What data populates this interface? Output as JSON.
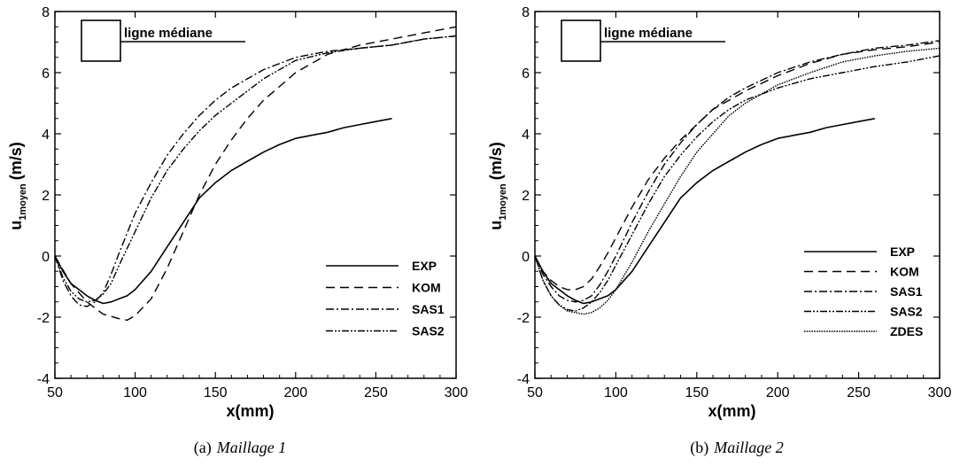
{
  "chart_data": [
    {
      "type": "line",
      "caption_prefix": "(a)",
      "caption": "Maillage 1",
      "inset_label": "ligne médiane",
      "xlabel": "x(mm)",
      "ylabel_main": "u",
      "ylabel_sub": "1moyen",
      "ylabel_unit": "(m/s)",
      "xlim": [
        50,
        300
      ],
      "ylim": [
        -4,
        8
      ],
      "xticks": [
        50,
        100,
        150,
        200,
        250,
        300
      ],
      "yticks": [
        -4,
        -2,
        0,
        2,
        4,
        6,
        8
      ],
      "legend_position": "right",
      "series": [
        {
          "name": "EXP",
          "style": "solid",
          "x": [
            50,
            55,
            60,
            65,
            70,
            75,
            80,
            85,
            90,
            95,
            100,
            110,
            120,
            130,
            140,
            150,
            160,
            170,
            180,
            190,
            200,
            210,
            220,
            230,
            240,
            250,
            260
          ],
          "y": [
            0.0,
            -0.5,
            -0.9,
            -1.1,
            -1.3,
            -1.45,
            -1.55,
            -1.5,
            -1.4,
            -1.3,
            -1.1,
            -0.5,
            0.3,
            1.1,
            1.9,
            2.4,
            2.8,
            3.1,
            3.4,
            3.65,
            3.85,
            3.95,
            4.05,
            4.2,
            4.3,
            4.4,
            4.5
          ]
        },
        {
          "name": "KOM",
          "style": "dash",
          "x": [
            50,
            60,
            70,
            80,
            90,
            95,
            100,
            110,
            120,
            130,
            140,
            150,
            160,
            170,
            180,
            200,
            220,
            240,
            260,
            280,
            300
          ],
          "y": [
            0.0,
            -0.9,
            -1.5,
            -1.9,
            -2.05,
            -2.1,
            -1.95,
            -1.4,
            -0.4,
            0.8,
            2.0,
            3.0,
            3.8,
            4.5,
            5.1,
            6.0,
            6.6,
            6.9,
            7.1,
            7.3,
            7.5
          ]
        },
        {
          "name": "SAS1",
          "style": "dashdot",
          "x": [
            50,
            55,
            60,
            65,
            70,
            75,
            80,
            85,
            90,
            100,
            110,
            120,
            130,
            140,
            150,
            160,
            170,
            180,
            200,
            220,
            240,
            260,
            280,
            300
          ],
          "y": [
            0.0,
            -0.8,
            -1.3,
            -1.6,
            -1.65,
            -1.5,
            -1.2,
            -0.6,
            0.1,
            1.4,
            2.4,
            3.3,
            4.0,
            4.6,
            5.1,
            5.5,
            5.8,
            6.1,
            6.5,
            6.7,
            6.8,
            6.9,
            7.1,
            7.2
          ]
        },
        {
          "name": "SAS2",
          "style": "dashdotdot",
          "x": [
            50,
            55,
            60,
            65,
            70,
            75,
            80,
            85,
            90,
            100,
            110,
            120,
            130,
            140,
            150,
            160,
            170,
            180,
            200,
            220,
            240,
            260,
            280,
            300
          ],
          "y": [
            0.0,
            -0.7,
            -1.15,
            -1.4,
            -1.5,
            -1.45,
            -1.25,
            -0.9,
            -0.3,
            0.8,
            1.9,
            2.8,
            3.5,
            4.1,
            4.6,
            5.0,
            5.4,
            5.8,
            6.4,
            6.65,
            6.8,
            6.9,
            7.1,
            7.2
          ]
        }
      ]
    },
    {
      "type": "line",
      "caption_prefix": "(b)",
      "caption": "Maillage 2",
      "inset_label": "ligne médiane",
      "xlabel": "x(mm)",
      "ylabel_main": "u",
      "ylabel_sub": "1moyen",
      "ylabel_unit": "(m/s)",
      "xlim": [
        50,
        300
      ],
      "ylim": [
        -4,
        8
      ],
      "xticks": [
        50,
        100,
        150,
        200,
        250,
        300
      ],
      "yticks": [
        -4,
        -2,
        0,
        2,
        4,
        6,
        8
      ],
      "legend_position": "right",
      "series": [
        {
          "name": "EXP",
          "style": "solid",
          "x": [
            50,
            55,
            60,
            65,
            70,
            75,
            80,
            85,
            90,
            95,
            100,
            110,
            120,
            130,
            140,
            150,
            160,
            170,
            180,
            190,
            200,
            210,
            220,
            230,
            240,
            250,
            260
          ],
          "y": [
            0.0,
            -0.5,
            -0.9,
            -1.1,
            -1.3,
            -1.45,
            -1.55,
            -1.5,
            -1.4,
            -1.3,
            -1.1,
            -0.5,
            0.3,
            1.1,
            1.9,
            2.4,
            2.8,
            3.1,
            3.4,
            3.65,
            3.85,
            3.95,
            4.05,
            4.2,
            4.3,
            4.4,
            4.5
          ]
        },
        {
          "name": "KOM",
          "style": "dash",
          "x": [
            50,
            55,
            60,
            65,
            70,
            75,
            80,
            85,
            90,
            95,
            100,
            110,
            120,
            130,
            140,
            150,
            160,
            170,
            180,
            200,
            220,
            240,
            260,
            280,
            300
          ],
          "y": [
            0.0,
            -0.5,
            -0.8,
            -1.0,
            -1.1,
            -1.1,
            -1.0,
            -0.75,
            -0.35,
            0.1,
            0.6,
            1.6,
            2.5,
            3.2,
            3.8,
            4.3,
            4.8,
            5.1,
            5.4,
            5.9,
            6.3,
            6.6,
            6.75,
            6.85,
            7.0
          ]
        },
        {
          "name": "SAS1",
          "style": "dashdot",
          "x": [
            50,
            55,
            60,
            65,
            70,
            75,
            80,
            85,
            90,
            95,
            100,
            110,
            120,
            130,
            140,
            150,
            160,
            170,
            180,
            200,
            220,
            240,
            260,
            280,
            300
          ],
          "y": [
            0.0,
            -0.6,
            -1.0,
            -1.3,
            -1.45,
            -1.5,
            -1.45,
            -1.3,
            -0.95,
            -0.5,
            0.0,
            1.1,
            2.1,
            3.0,
            3.7,
            4.3,
            4.8,
            5.2,
            5.5,
            6.0,
            6.35,
            6.6,
            6.8,
            6.9,
            7.05
          ]
        },
        {
          "name": "SAS2",
          "style": "dashdotdot",
          "x": [
            50,
            55,
            60,
            65,
            70,
            75,
            80,
            85,
            90,
            95,
            100,
            110,
            120,
            130,
            140,
            150,
            160,
            170,
            180,
            200,
            220,
            240,
            260,
            280,
            300
          ],
          "y": [
            0.0,
            -0.8,
            -1.3,
            -1.6,
            -1.75,
            -1.8,
            -1.7,
            -1.5,
            -1.2,
            -0.8,
            -0.3,
            0.7,
            1.7,
            2.6,
            3.3,
            3.9,
            4.4,
            4.8,
            5.1,
            5.5,
            5.8,
            6.0,
            6.2,
            6.35,
            6.55
          ]
        },
        {
          "name": "ZDES",
          "style": "dot",
          "x": [
            50,
            55,
            60,
            65,
            70,
            75,
            80,
            85,
            90,
            95,
            100,
            110,
            120,
            130,
            140,
            150,
            160,
            170,
            180,
            200,
            220,
            240,
            260,
            280,
            300
          ],
          "y": [
            0.0,
            -0.8,
            -1.3,
            -1.6,
            -1.8,
            -1.85,
            -1.9,
            -1.85,
            -1.7,
            -1.45,
            -1.1,
            -0.2,
            0.8,
            1.7,
            2.6,
            3.4,
            4.0,
            4.6,
            5.0,
            5.6,
            6.0,
            6.35,
            6.55,
            6.7,
            6.8
          ]
        }
      ]
    }
  ]
}
